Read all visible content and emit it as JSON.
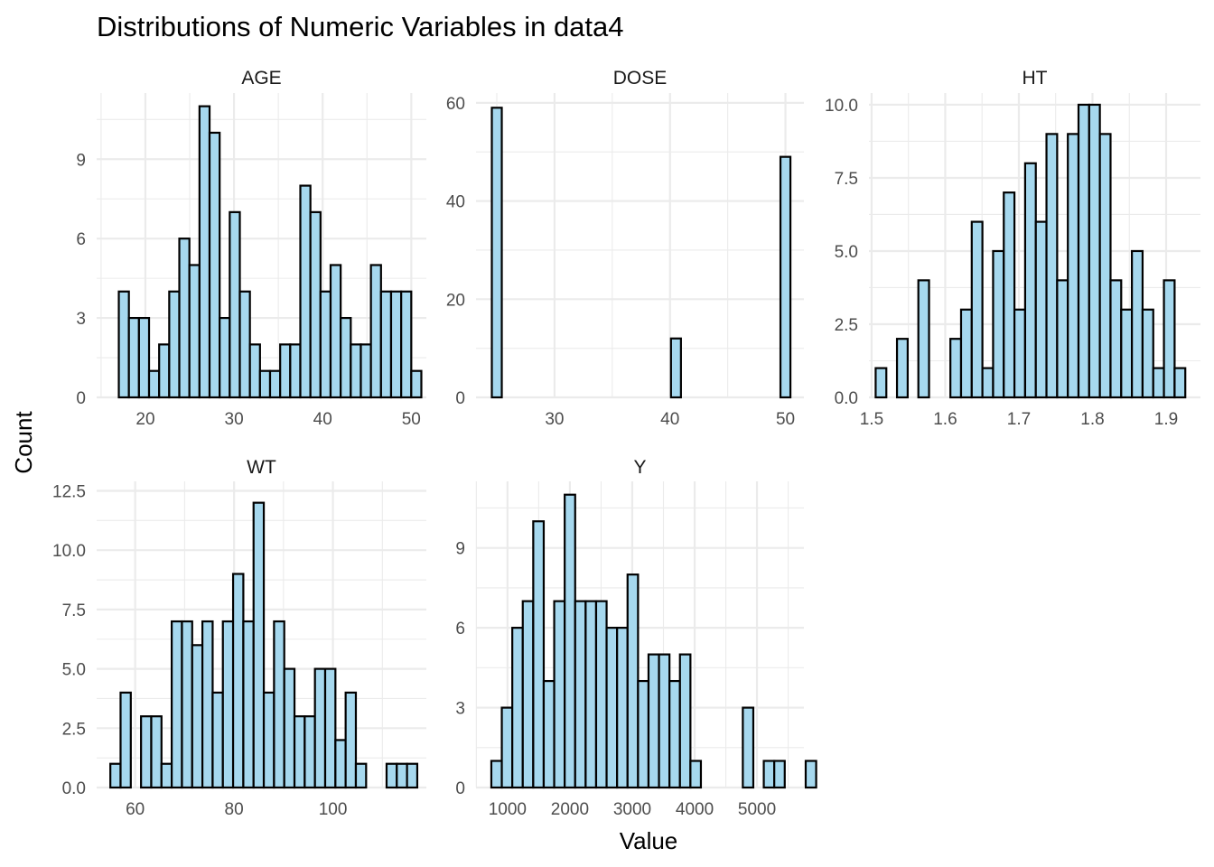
{
  "chart_data": {
    "type": "bar",
    "title": "Distributions of Numeric Variables in data4",
    "xlabel": "Value",
    "ylabel": "Count",
    "grid": true,
    "legend": "none",
    "colors": {
      "fill": "#a6d8ee",
      "outline": "#000000",
      "grid": "#ebebeb"
    },
    "panels": [
      {
        "name": "AGE",
        "bin_width": 1.1379,
        "bin_start": 17.0,
        "counts": [
          4,
          3,
          3,
          1,
          2,
          4,
          6,
          5,
          11,
          10,
          3,
          7,
          4,
          2,
          1,
          1,
          2,
          2,
          8,
          7,
          4,
          5,
          3,
          2,
          2,
          5,
          4,
          4,
          4,
          1
        ],
        "xlim": [
          14.5,
          51.7
        ],
        "xticks": [
          "20",
          "30",
          "40",
          "50"
        ],
        "xtick_values": [
          20,
          30,
          40,
          50
        ],
        "ylim": [
          0,
          11.5
        ],
        "yticks": [
          "0",
          "3",
          "6",
          "9"
        ],
        "ytick_values": [
          0,
          3,
          6,
          9
        ]
      },
      {
        "name": "DOSE",
        "bin_width": 0.8621,
        "bin_start": 24.569,
        "counts": [
          59,
          0,
          0,
          0,
          0,
          0,
          0,
          0,
          0,
          0,
          0,
          0,
          0,
          0,
          0,
          0,
          0,
          0,
          12,
          0,
          0,
          0,
          0,
          0,
          0,
          0,
          0,
          0,
          0,
          49
        ],
        "xlim": [
          23.2,
          51.6
        ],
        "xticks": [
          "30",
          "40",
          "50"
        ],
        "xtick_values": [
          30,
          40,
          50
        ],
        "ylim": [
          0,
          62
        ],
        "yticks": [
          "0",
          "20",
          "40",
          "60"
        ],
        "ytick_values": [
          0,
          20,
          40,
          60
        ]
      },
      {
        "name": "HT",
        "bin_width": 0.0145,
        "bin_start": 1.5055,
        "counts": [
          1,
          0,
          2,
          0,
          4,
          0,
          0,
          2,
          3,
          6,
          1,
          5,
          7,
          3,
          8,
          6,
          9,
          4,
          9,
          10,
          10,
          9,
          4,
          3,
          5,
          3,
          1,
          4,
          1
        ],
        "xlim": [
          1.4964,
          1.9466
        ],
        "xticks": [
          "1.5",
          "1.6",
          "1.7",
          "1.8",
          "1.9"
        ],
        "xtick_values": [
          1.5,
          1.6,
          1.7,
          1.8,
          1.9
        ],
        "ylim": [
          0,
          10.4
        ],
        "yticks": [
          "0.0",
          "2.5",
          "5.0",
          "7.5",
          "10.0"
        ],
        "ytick_values": [
          0,
          2.5,
          5,
          7.5,
          10
        ]
      },
      {
        "name": "WT",
        "bin_width": 2.0697,
        "bin_start": 54.97,
        "counts": [
          1,
          4,
          0,
          3,
          3,
          1,
          7,
          7,
          6,
          7,
          4,
          7,
          9,
          7,
          12,
          4,
          7,
          5,
          3,
          3,
          5,
          5,
          2,
          4,
          1,
          0,
          0,
          1,
          1,
          1
        ],
        "xlim": [
          52.2,
          118.9
        ],
        "xticks": [
          "60",
          "80",
          "100"
        ],
        "xtick_values": [
          60,
          80,
          100
        ],
        "ylim": [
          0,
          12.9
        ],
        "yticks": [
          "0.0",
          "2.5",
          "5.0",
          "7.5",
          "10.0",
          "12.5"
        ],
        "ytick_values": [
          0,
          2.5,
          5,
          7.5,
          10,
          12.5
        ]
      },
      {
        "name": "Y",
        "bin_width": 168.0,
        "bin_start": 740.5,
        "counts": [
          1,
          3,
          6,
          7,
          10,
          4,
          7,
          11,
          7,
          7,
          7,
          6,
          6,
          8,
          4,
          5,
          5,
          4,
          5,
          1,
          0,
          0,
          0,
          0,
          3,
          0,
          1,
          1,
          0,
          0,
          1
        ],
        "xlim": [
          495.0,
          5752.0
        ],
        "xticks": [
          "1000",
          "2000",
          "3000",
          "4000",
          "5000"
        ],
        "xtick_values": [
          1000,
          2000,
          3000,
          4000,
          5000
        ],
        "ylim": [
          0,
          11.5
        ],
        "yticks": [
          "0",
          "3",
          "6",
          "9"
        ],
        "ytick_values": [
          0,
          3,
          6,
          9
        ]
      }
    ]
  }
}
